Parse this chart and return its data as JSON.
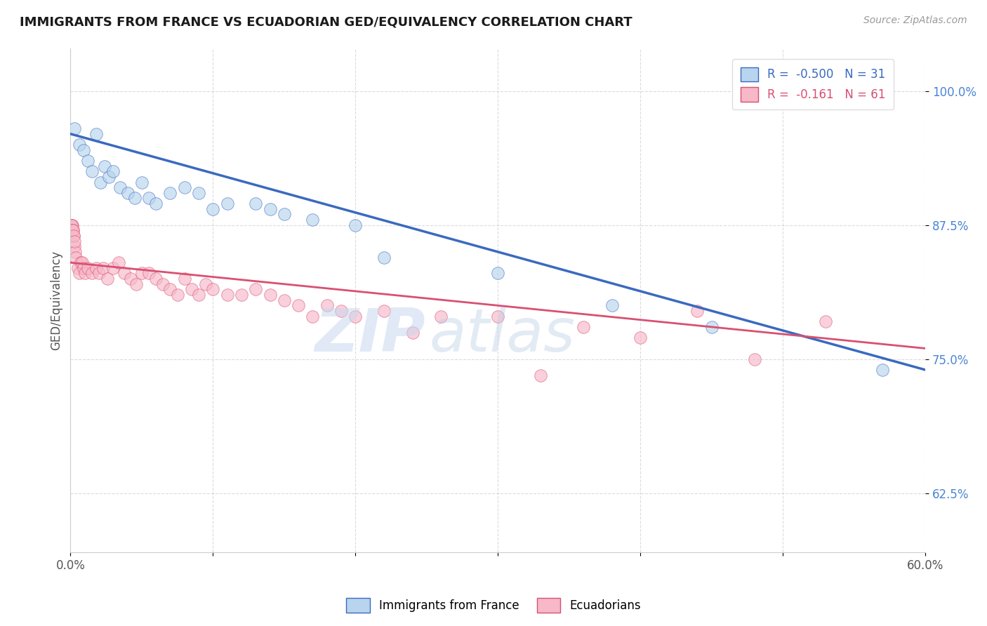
{
  "title": "IMMIGRANTS FROM FRANCE VS ECUADORIAN GED/EQUIVALENCY CORRELATION CHART",
  "source": "Source: ZipAtlas.com",
  "ylabel": "GED/Equivalency",
  "xlim": [
    0.0,
    60.0
  ],
  "ylim": [
    57.0,
    104.0
  ],
  "yticks": [
    62.5,
    75.0,
    87.5,
    100.0
  ],
  "ytick_labels": [
    "62.5%",
    "75.0%",
    "87.5%",
    "100.0%"
  ],
  "xticks": [
    0.0,
    10.0,
    20.0,
    30.0,
    40.0,
    50.0,
    60.0
  ],
  "xtick_labels": [
    "0.0%",
    "",
    "",
    "",
    "",
    "",
    "60.0%"
  ],
  "blue_r": "-0.500",
  "blue_n": "31",
  "pink_r": "-0.161",
  "pink_n": "61",
  "blue_color": "#b8d4ee",
  "pink_color": "#f7b8c8",
  "blue_line_color": "#3a6abf",
  "pink_line_color": "#d95070",
  "legend_blue_label": "Immigrants from France",
  "legend_pink_label": "Ecuadorians",
  "blue_scatter_x": [
    0.3,
    0.6,
    0.9,
    1.2,
    1.5,
    1.8,
    2.1,
    2.4,
    2.7,
    3.0,
    3.5,
    4.0,
    4.5,
    5.0,
    5.5,
    6.0,
    7.0,
    8.0,
    9.0,
    10.0,
    11.0,
    13.0,
    14.0,
    15.0,
    17.0,
    20.0,
    22.0,
    30.0,
    38.0,
    45.0,
    57.0
  ],
  "blue_scatter_y": [
    96.5,
    95.0,
    94.5,
    93.5,
    92.5,
    96.0,
    91.5,
    93.0,
    92.0,
    92.5,
    91.0,
    90.5,
    90.0,
    91.5,
    90.0,
    89.5,
    90.5,
    91.0,
    90.5,
    89.0,
    89.5,
    89.5,
    89.0,
    88.5,
    88.0,
    87.5,
    84.5,
    83.0,
    80.0,
    78.0,
    74.0
  ],
  "pink_scatter_x": [
    0.05,
    0.1,
    0.15,
    0.2,
    0.25,
    0.3,
    0.35,
    0.4,
    0.5,
    0.6,
    0.7,
    0.8,
    0.9,
    1.0,
    1.2,
    1.5,
    1.8,
    2.0,
    2.3,
    2.6,
    3.0,
    3.4,
    3.8,
    4.2,
    4.6,
    5.0,
    5.5,
    6.0,
    6.5,
    7.0,
    7.5,
    8.0,
    8.5,
    9.0,
    9.5,
    10.0,
    11.0,
    12.0,
    13.0,
    14.0,
    15.0,
    16.0,
    17.0,
    18.0,
    19.0,
    20.0,
    22.0,
    24.0,
    26.0,
    30.0,
    33.0,
    36.0,
    40.0,
    44.0,
    48.0,
    53.0,
    0.08,
    0.12,
    0.18,
    0.22,
    0.28
  ],
  "pink_scatter_y": [
    87.5,
    87.5,
    87.5,
    87.0,
    86.5,
    85.5,
    85.0,
    84.5,
    83.5,
    83.0,
    84.0,
    84.0,
    83.5,
    83.0,
    83.5,
    83.0,
    83.5,
    83.0,
    83.5,
    82.5,
    83.5,
    84.0,
    83.0,
    82.5,
    82.0,
    83.0,
    83.0,
    82.5,
    82.0,
    81.5,
    81.0,
    82.5,
    81.5,
    81.0,
    82.0,
    81.5,
    81.0,
    81.0,
    81.5,
    81.0,
    80.5,
    80.0,
    79.0,
    80.0,
    79.5,
    79.0,
    79.5,
    77.5,
    79.0,
    79.0,
    73.5,
    78.0,
    77.0,
    79.5,
    75.0,
    78.5,
    87.5,
    87.0,
    87.0,
    86.5,
    86.0
  ],
  "blue_trend_x": [
    0.0,
    60.0
  ],
  "blue_trend_y": [
    96.0,
    74.0
  ],
  "pink_trend_x": [
    0.0,
    60.0
  ],
  "pink_trend_y": [
    84.0,
    76.0
  ],
  "watermark_zip": "ZIP",
  "watermark_atlas": "atlas",
  "background_color": "#ffffff",
  "grid_color": "#cccccc"
}
